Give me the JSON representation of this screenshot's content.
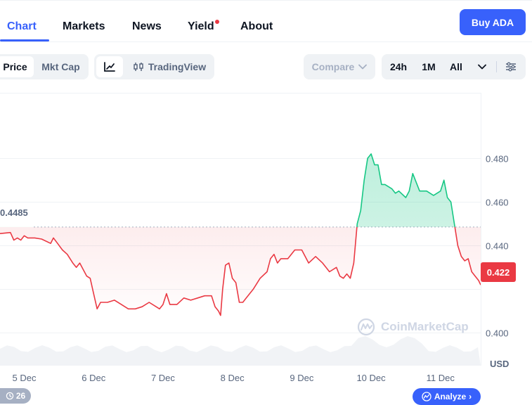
{
  "nav": {
    "tabs": [
      {
        "label": "Chart",
        "active": true
      },
      {
        "label": "Markets"
      },
      {
        "label": "News"
      },
      {
        "label": "Yield",
        "has_dot": true
      },
      {
        "label": "About"
      }
    ],
    "buy_label": "Buy ADA"
  },
  "toolbar": {
    "metric_tabs": [
      "Price",
      "Mkt Cap"
    ],
    "active_metric": "Price",
    "chart_types": [
      {
        "icon": "line-chart-icon",
        "active": true
      },
      {
        "icon": "candlestick-icon",
        "label": "TradingView"
      }
    ],
    "compare_label": "Compare",
    "ranges": [
      "24h",
      "1M",
      "All"
    ],
    "range_selector": "chevron-down-icon",
    "settings": "sliders-icon"
  },
  "chart": {
    "reference_label": "0.4485",
    "current_price_label": "0.422",
    "currency_label": "USD",
    "watermark": "CoinMarketCap",
    "history_count": "26",
    "analyze_label": "Analyze",
    "colors": {
      "up": "#16c784",
      "down": "#ea3943",
      "accent": "#3861fb"
    }
  },
  "chart_data": {
    "type": "area",
    "reference_value": 0.4485,
    "current_value": 0.422,
    "y_ticks": [
      "0.480",
      "0.460",
      "0.440",
      "0.400"
    ],
    "y_tick_values": [
      0.48,
      0.46,
      0.44,
      0.4
    ],
    "ylim": [
      0.385,
      0.51
    ],
    "x_ticks": [
      "5 Dec",
      "6 Dec",
      "7 Dec",
      "8 Dec",
      "9 Dec",
      "10 Dec",
      "11 Dec"
    ],
    "x_tick_index": [
      0,
      1,
      2,
      3,
      4,
      5,
      6
    ],
    "xlim": [
      -0.35,
      6.58
    ],
    "series": [
      {
        "x": [
          -0.35,
          -0.2,
          -0.15,
          -0.1,
          -0.05,
          0.0,
          0.05,
          0.15,
          0.25,
          0.38,
          0.42,
          0.48,
          0.55,
          0.62,
          0.7,
          0.75,
          0.8,
          0.85,
          0.9,
          0.95,
          1.0,
          1.05,
          1.1,
          1.2,
          1.3,
          1.4,
          1.5,
          1.6,
          1.7,
          1.8,
          1.9,
          1.95,
          2.0,
          2.05,
          2.1,
          2.2,
          2.3,
          2.4,
          2.5,
          2.6,
          2.7,
          2.75,
          2.8,
          2.83,
          2.86,
          2.9,
          2.95,
          3.0,
          3.05,
          3.1,
          3.15,
          3.2,
          3.3,
          3.4,
          3.5,
          3.55,
          3.6,
          3.65,
          3.7,
          3.8,
          3.9,
          4.0,
          4.1,
          4.2,
          4.3,
          4.4,
          4.5,
          4.55,
          4.6,
          4.65,
          4.7,
          4.75,
          4.8,
          4.85,
          4.9,
          4.95,
          5.0,
          5.05,
          5.1,
          5.15,
          5.2,
          5.3,
          5.35,
          5.4,
          5.5,
          5.55,
          5.6,
          5.7,
          5.8,
          5.9,
          6.0,
          6.05,
          6.1,
          6.15,
          6.2,
          6.25,
          6.3,
          6.35,
          6.4,
          6.45,
          6.5,
          6.55,
          6.58
        ],
        "values": [
          0.4455,
          0.446,
          0.4425,
          0.4435,
          0.4425,
          0.4445,
          0.4435,
          0.4435,
          0.443,
          0.441,
          0.4435,
          0.441,
          0.438,
          0.436,
          0.432,
          0.43,
          0.432,
          0.429,
          0.426,
          0.425,
          0.418,
          0.411,
          0.414,
          0.414,
          0.415,
          0.413,
          0.411,
          0.411,
          0.412,
          0.414,
          0.412,
          0.411,
          0.413,
          0.418,
          0.413,
          0.413,
          0.416,
          0.415,
          0.416,
          0.417,
          0.417,
          0.412,
          0.41,
          0.408,
          0.42,
          0.431,
          0.432,
          0.425,
          0.423,
          0.414,
          0.414,
          0.416,
          0.42,
          0.425,
          0.428,
          0.434,
          0.436,
          0.432,
          0.434,
          0.434,
          0.438,
          0.438,
          0.432,
          0.435,
          0.432,
          0.428,
          0.43,
          0.426,
          0.425,
          0.427,
          0.425,
          0.432,
          0.45,
          0.456,
          0.47,
          0.48,
          0.482,
          0.477,
          0.477,
          0.468,
          0.468,
          0.466,
          0.464,
          0.465,
          0.462,
          0.465,
          0.473,
          0.465,
          0.465,
          0.463,
          0.465,
          0.47,
          0.462,
          0.46,
          0.45,
          0.44,
          0.435,
          0.433,
          0.434,
          0.428,
          0.426,
          0.424,
          0.422
        ]
      }
    ]
  }
}
